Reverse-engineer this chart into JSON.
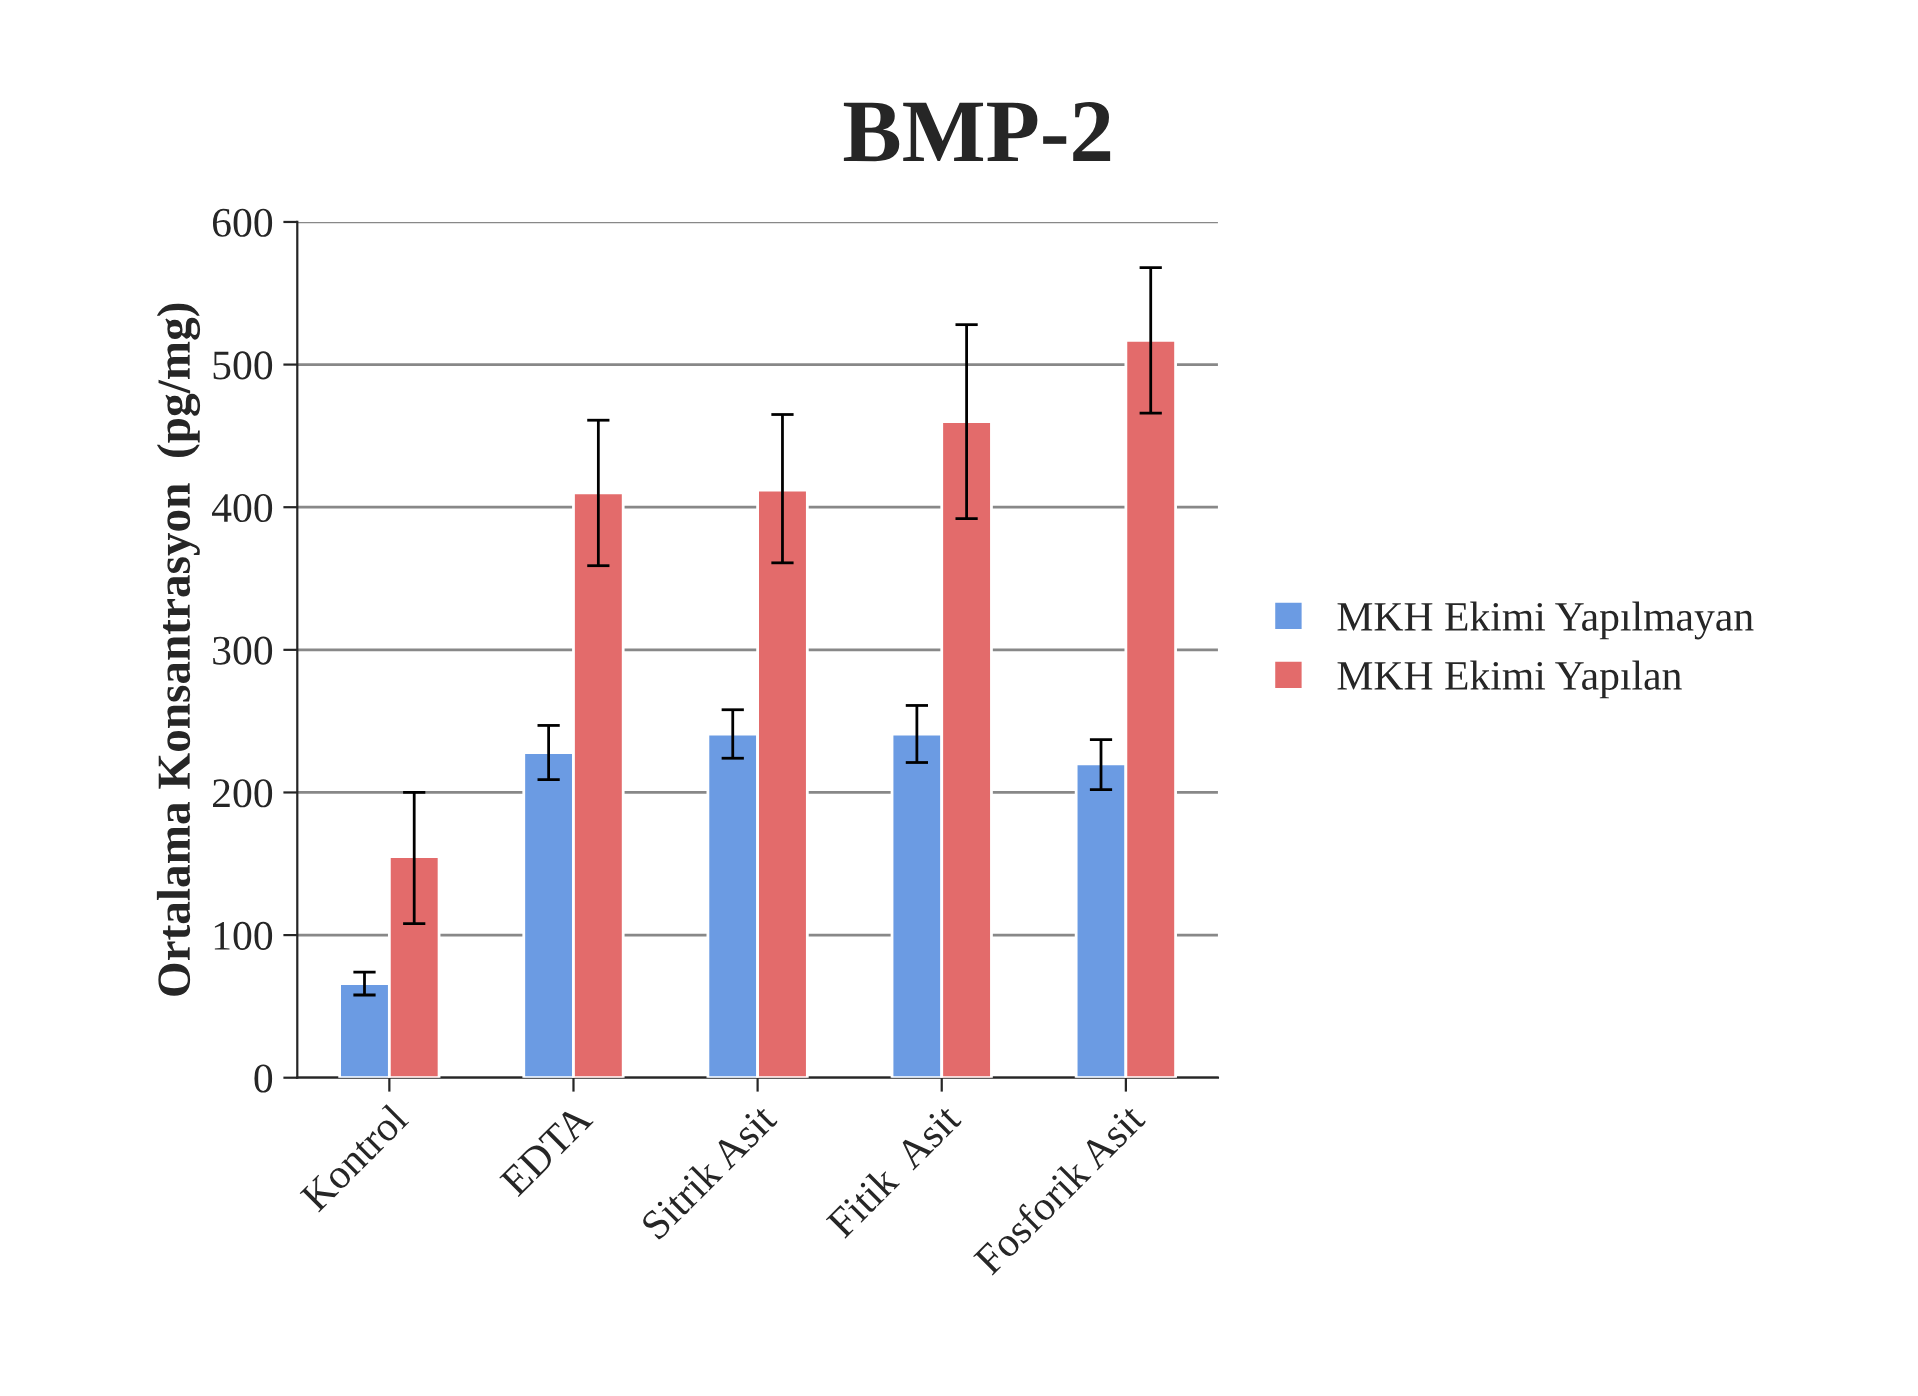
{
  "chart_data": {
    "type": "bar",
    "title": "BMP-2",
    "ylabel": "Ortalama Konsantrasyon  (pg/mg)",
    "categories": [
      "Kontrol",
      "EDTA",
      "Sitrik Asit",
      "Fitik  Asit",
      "Fosforik Asit"
    ],
    "series": [
      {
        "name": "MKH Ekimi Yapılmayan",
        "color": "#6b9be3",
        "values": [
          66,
          228,
          241,
          241,
          220
        ],
        "errors": [
          [
            58,
            74
          ],
          [
            209,
            247
          ],
          [
            224,
            258
          ],
          [
            221,
            261
          ],
          [
            202,
            237
          ]
        ]
      },
      {
        "name": "MKH Ekimi Yapılan",
        "color": "#e36b6b",
        "values": [
          155,
          410,
          412,
          460,
          517
        ],
        "errors": [
          [
            108,
            200
          ],
          [
            359,
            461
          ],
          [
            361,
            465
          ],
          [
            392,
            528
          ],
          [
            466,
            568
          ]
        ]
      }
    ],
    "ylim": [
      0,
      600
    ],
    "yticks": [
      0,
      100,
      200,
      300,
      400,
      500,
      600
    ],
    "grid": "y",
    "legend": "right"
  }
}
